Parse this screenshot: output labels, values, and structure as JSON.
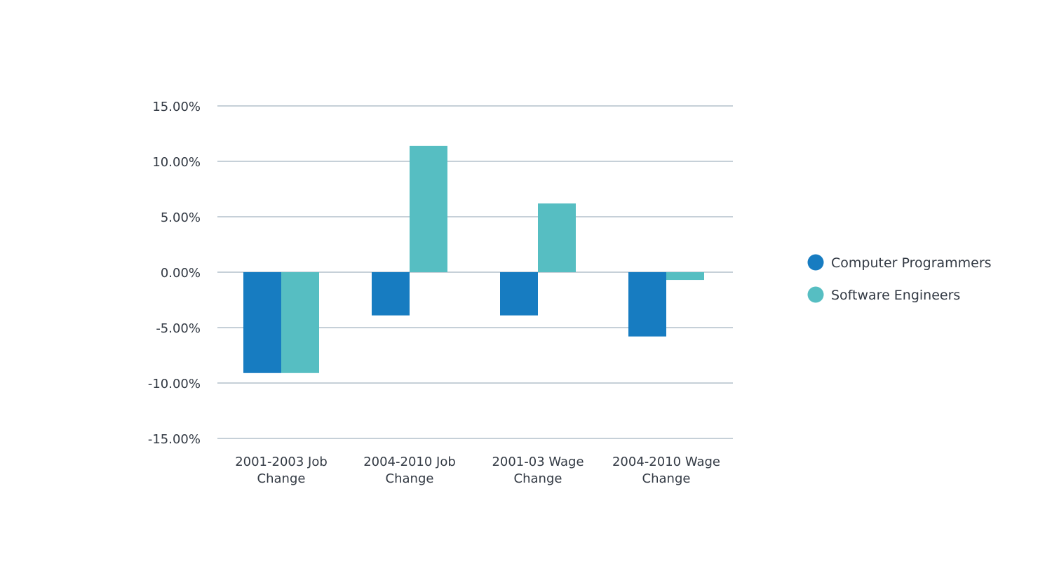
{
  "chart_data": {
    "type": "bar",
    "title": "",
    "xlabel": "",
    "ylabel": "",
    "categories": [
      [
        "2001-2003 Job",
        "Change"
      ],
      [
        "2004-2010 Job",
        "Change"
      ],
      [
        "2001-03 Wage",
        "Change"
      ],
      [
        "2004-2010 Wage",
        "Change"
      ]
    ],
    "series": [
      {
        "name": "Computer Programmers",
        "color": "#177cc1",
        "values": [
          -9.1,
          -3.9,
          -3.9,
          -5.8
        ]
      },
      {
        "name": "Software Engineers",
        "color": "#56bec2",
        "values": [
          -9.1,
          11.4,
          6.2,
          -0.7
        ]
      }
    ],
    "ylim": [
      -15,
      15
    ],
    "y_ticks": [
      15,
      10,
      5,
      0,
      -5,
      -10,
      -15
    ],
    "y_tick_labels": [
      "15.00%",
      "10.00%",
      "5.00%",
      "0.00%",
      "-5.00%",
      "-10.00%",
      "-15.00%"
    ],
    "grid": true,
    "legend_position": "right",
    "gridline_color": "#b4c1cb"
  }
}
